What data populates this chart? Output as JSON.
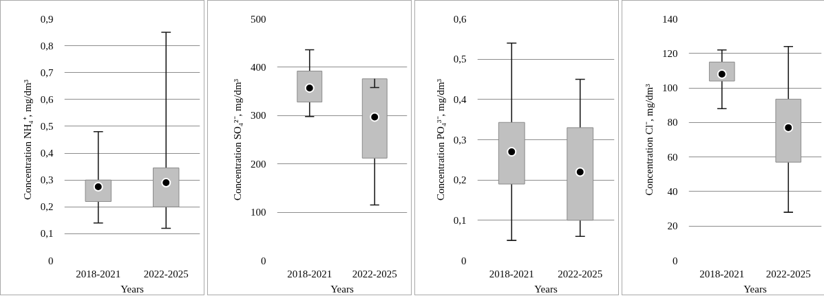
{
  "chart_data": [
    {
      "type": "box",
      "xlabel": "Years",
      "ylabel": "Concentration NH₄⁺, mg/dm³",
      "categories": [
        "2018-2021",
        "2022-2025"
      ],
      "series": [
        {
          "color": "#c0c0c0",
          "boxes": [
            {
              "low": 0.14,
              "q1": 0.22,
              "median": 0.275,
              "q3": 0.3,
              "high": 0.48
            },
            {
              "low": 0.12,
              "q1": 0.2,
              "median": 0.29,
              "q3": 0.345,
              "high": 0.85
            }
          ]
        }
      ],
      "ylim": [
        0,
        0.9
      ],
      "yticks": [
        0,
        {
          "value": 0.1,
          "label": "0,1"
        },
        {
          "value": 0.2,
          "label": "0,2"
        },
        {
          "value": 0.3,
          "label": "0,3"
        },
        {
          "value": 0.4,
          "label": "0,4"
        },
        {
          "value": 0.5,
          "label": "0,5"
        },
        {
          "value": 0.6,
          "label": "0,6"
        },
        {
          "value": 0.7,
          "label": "0,7"
        },
        {
          "value": 0.8,
          "label": "0,8"
        },
        {
          "value": 0.9,
          "label": "0,9"
        }
      ],
      "grid": "y",
      "marker": "circle"
    },
    {
      "type": "box",
      "xlabel": "Years",
      "ylabel": "Concentration SO₄²⁻, mg/dm³",
      "categories": [
        "2018-2021",
        "2022-2025"
      ],
      "series": [
        {
          "color": "#c0c0c0",
          "boxes": [
            {
              "low": 298,
              "q1": 328,
              "median": 357,
              "q3": 392,
              "high": 436
            },
            {
              "low": 115,
              "q1": 212,
              "median": 297,
              "q3": 376,
              "high": 358
            }
          ]
        }
      ],
      "ylim": [
        0,
        500
      ],
      "yticks": [
        0,
        100,
        200,
        300,
        400,
        500
      ],
      "grid": "y",
      "marker": "circle"
    },
    {
      "type": "box",
      "xlabel": "Years",
      "ylabel": "Concentration PO₄³⁻, mg/dm³",
      "categories": [
        "2018-2021",
        "2022-2025"
      ],
      "series": [
        {
          "color": "#c0c0c0",
          "boxes": [
            {
              "low": 0.05,
              "q1": 0.19,
              "median": 0.27,
              "q3": 0.343,
              "high": 0.54
            },
            {
              "low": 0.06,
              "q1": 0.1,
              "median": 0.22,
              "q3": 0.33,
              "high": 0.45
            }
          ]
        }
      ],
      "ylim": [
        0,
        0.6
      ],
      "yticks": [
        0,
        {
          "value": 0.1,
          "label": "0,1"
        },
        {
          "value": 0.2,
          "label": "0,2"
        },
        {
          "value": 0.3,
          "label": "0,3"
        },
        {
          "value": 0.4,
          "label": "0,4"
        },
        {
          "value": 0.5,
          "label": "0,5"
        },
        {
          "value": 0.6,
          "label": "0,6"
        }
      ],
      "grid": "y",
      "marker": "circle"
    },
    {
      "type": "box",
      "xlabel": "Years",
      "ylabel": "Concentration Cl⁻, mg/dm³",
      "categories": [
        "2018-2021",
        "2022-2025"
      ],
      "series": [
        {
          "color": "#c0c0c0",
          "boxes": [
            {
              "low": 88,
              "q1": 104,
              "median": 108,
              "q3": 115,
              "high": 122
            },
            {
              "low": 28,
              "q1": 57,
              "median": 77,
              "q3": 93.5,
              "high": 124
            }
          ]
        }
      ],
      "ylim": [
        0,
        140
      ],
      "yticks": [
        0,
        20,
        40,
        60,
        80,
        100,
        120,
        140
      ],
      "grid": "y",
      "marker": "circle"
    }
  ]
}
